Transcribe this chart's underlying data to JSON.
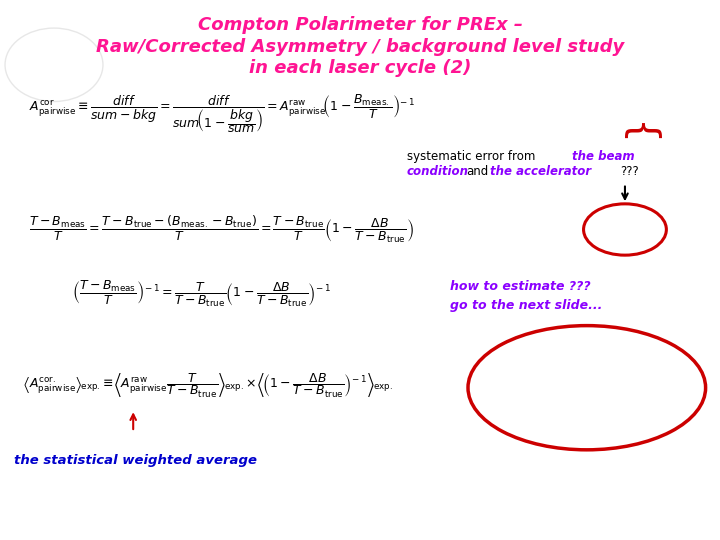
{
  "title_line1": "Compton Polarimeter for PREx –",
  "title_line2": "Raw/Corrected Asymmetry / background level study",
  "title_line3": "in each laser cycle (2)",
  "title_color": "#FF1493",
  "bg_color": "#FFFFFF",
  "purple_color": "#8B00FF",
  "red_color": "#CC0000",
  "blue_color": "#0000CC",
  "arrow_color": "#CC0000"
}
